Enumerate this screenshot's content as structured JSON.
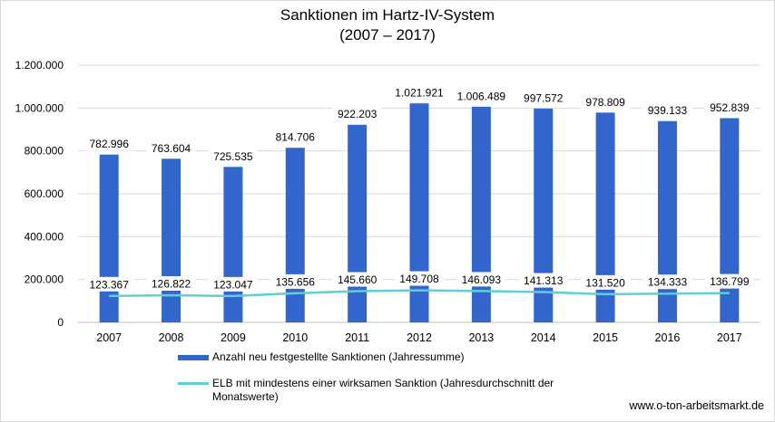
{
  "chart_data": {
    "type": "bar",
    "title": "Sanktionen im Hartz-IV-System",
    "subtitle": "(2007 – 2017)",
    "categories": [
      "2007",
      "2008",
      "2009",
      "2010",
      "2011",
      "2012",
      "2013",
      "2014",
      "2015",
      "2016",
      "2017"
    ],
    "series": [
      {
        "name": "Anzahl neu festgestellte Sanktionen (Jahressumme)",
        "type": "bar",
        "values": [
          782996,
          763604,
          725535,
          814706,
          922203,
          1021921,
          1006489,
          997572,
          978809,
          939133,
          952839
        ],
        "labels": [
          "782.996",
          "763.604",
          "725.535",
          "814.706",
          "922.203",
          "1.021.921",
          "1.006.489",
          "997.572",
          "978.809",
          "939.133",
          "952.839"
        ],
        "color": "#3366cc"
      },
      {
        "name": "ELB mit mindestens einer wirksamen Sanktion (Jahresdurchschnitt der Monatswerte)",
        "type": "line",
        "values": [
          123367,
          126822,
          123047,
          135656,
          145660,
          149708,
          146093,
          141313,
          131520,
          134333,
          136799
        ],
        "labels": [
          "123.367",
          "126.822",
          "123.047",
          "135.656",
          "145.660",
          "149.708",
          "146.093",
          "141.313",
          "131.520",
          "134.333",
          "136.799"
        ],
        "color": "#5ecfd6"
      }
    ],
    "yticks": [
      0,
      200000,
      400000,
      600000,
      800000,
      1000000,
      1200000
    ],
    "ytick_labels": [
      "0",
      "200.000",
      "400.000",
      "600.000",
      "800.000",
      "1.000.000",
      "1.200.000"
    ],
    "ylim": [
      0,
      1200000
    ],
    "grid": "horizontal",
    "legend_position": "bottom"
  },
  "legend": {
    "bar_label": "Anzahl neu festgestellte Sanktionen (Jahressumme)",
    "line_label_1": "ELB mit mindestens einer wirksamen Sanktion (Jahresdurchschnitt der",
    "line_label_2": "Monatswerte)"
  },
  "footer": {
    "source": "www.o-ton-arbeitsmarkt.de"
  }
}
